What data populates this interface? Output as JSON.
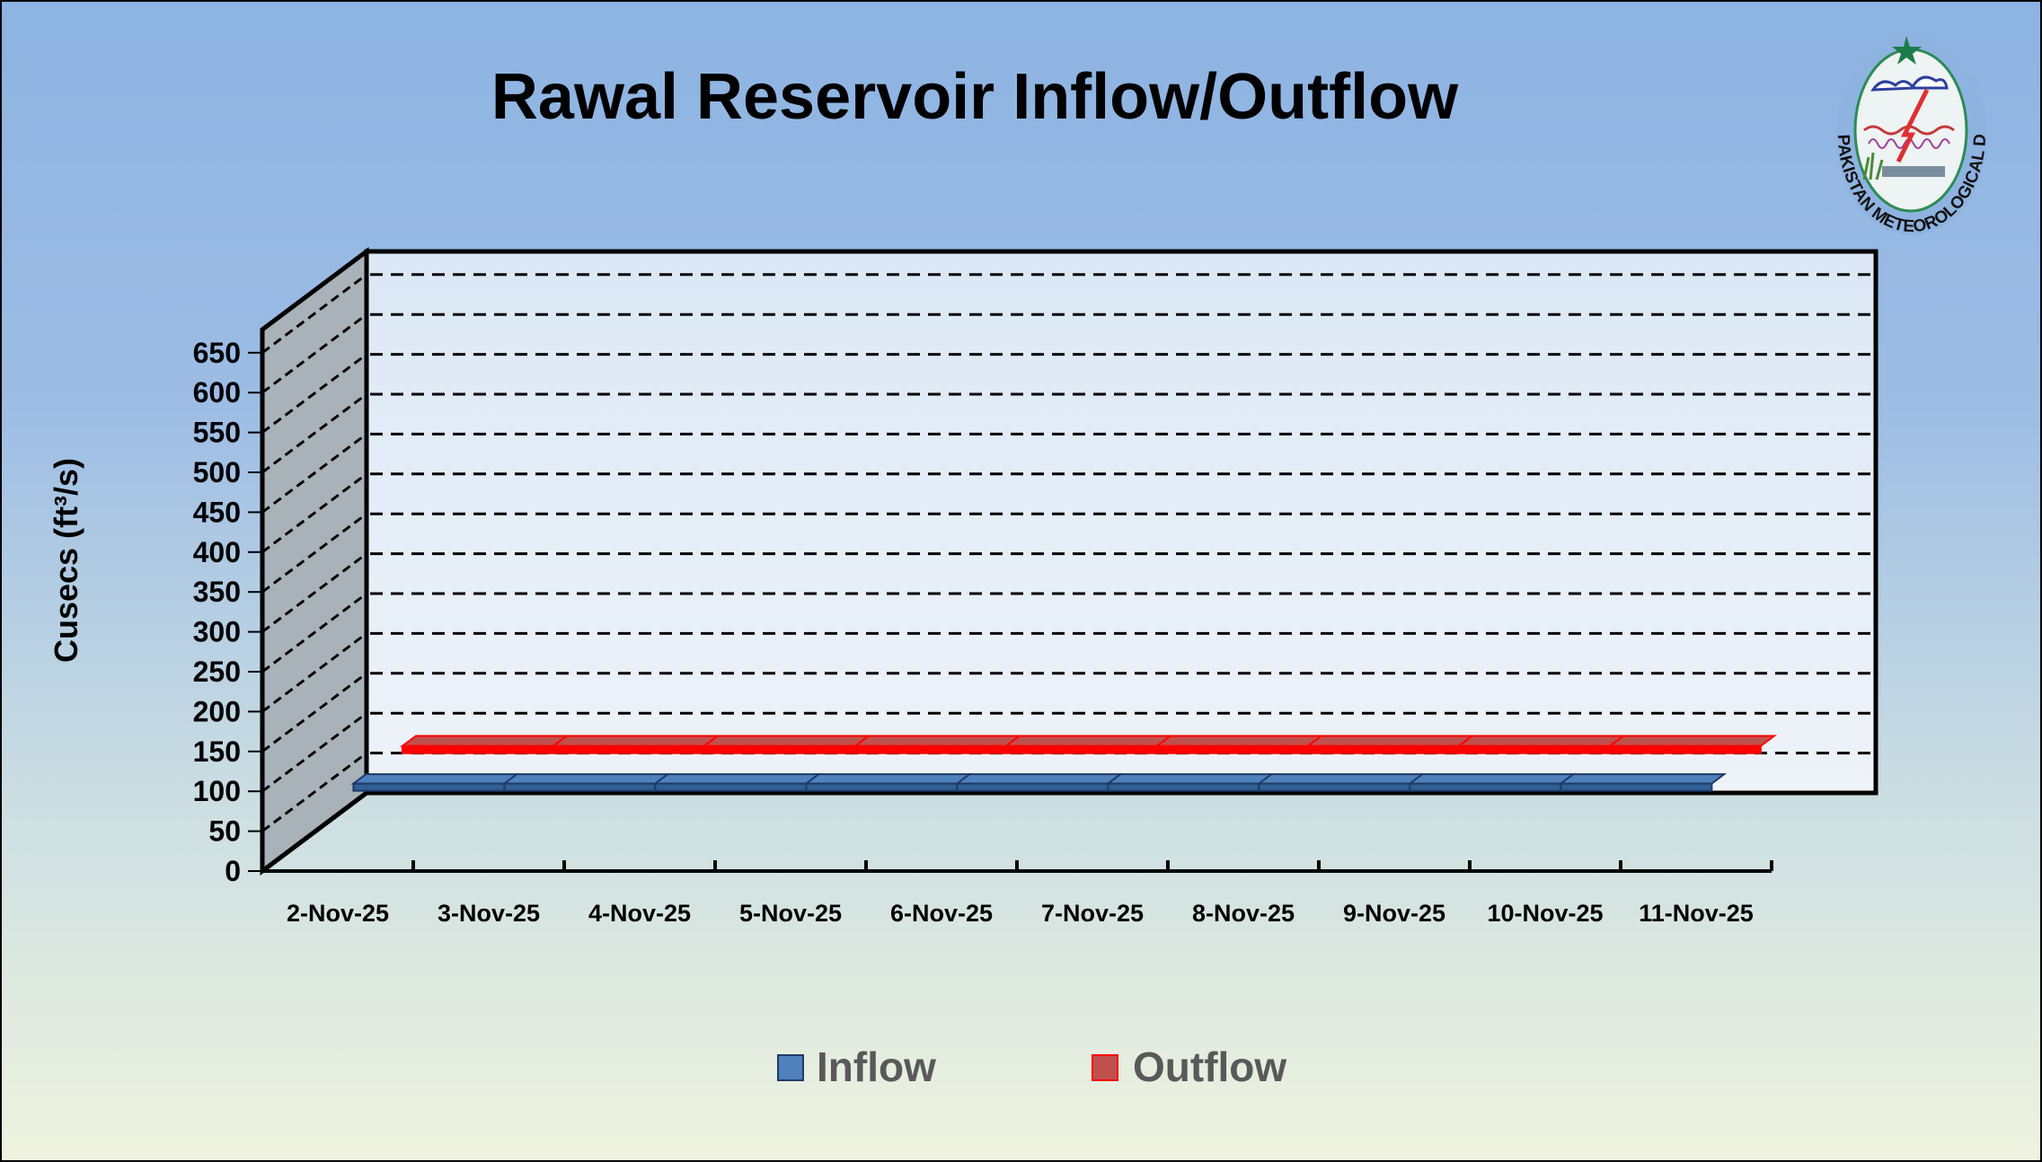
{
  "chart_data": {
    "type": "line",
    "style": "3d-line",
    "title": "Rawal Reservoir Inflow/Outflow",
    "ylabel": "Cusecs (ft³/s)",
    "xlabel": "",
    "ylim": [
      0,
      650
    ],
    "yticks": [
      0,
      50,
      100,
      150,
      200,
      250,
      300,
      350,
      400,
      450,
      500,
      550,
      600,
      650
    ],
    "grid": true,
    "legend_position": "bottom",
    "categories": [
      "2-Nov-25",
      "3-Nov-25",
      "4-Nov-25",
      "5-Nov-25",
      "6-Nov-25",
      "7-Nov-25",
      "8-Nov-25",
      "9-Nov-25",
      "10-Nov-25",
      "11-Nov-25"
    ],
    "series": [
      {
        "name": "Inflow",
        "color": "#4f81bd",
        "values": [
          95,
          95,
          95,
          95,
          95,
          95,
          95,
          95,
          95,
          95
        ]
      },
      {
        "name": "Outflow",
        "color": "#ff0000",
        "values": [
          96,
          96,
          96,
          96,
          96,
          96,
          96,
          96,
          96,
          96
        ]
      }
    ]
  },
  "logo": {
    "text": "PAKISTAN METEOROLOGICAL DEPARTMENT"
  }
}
